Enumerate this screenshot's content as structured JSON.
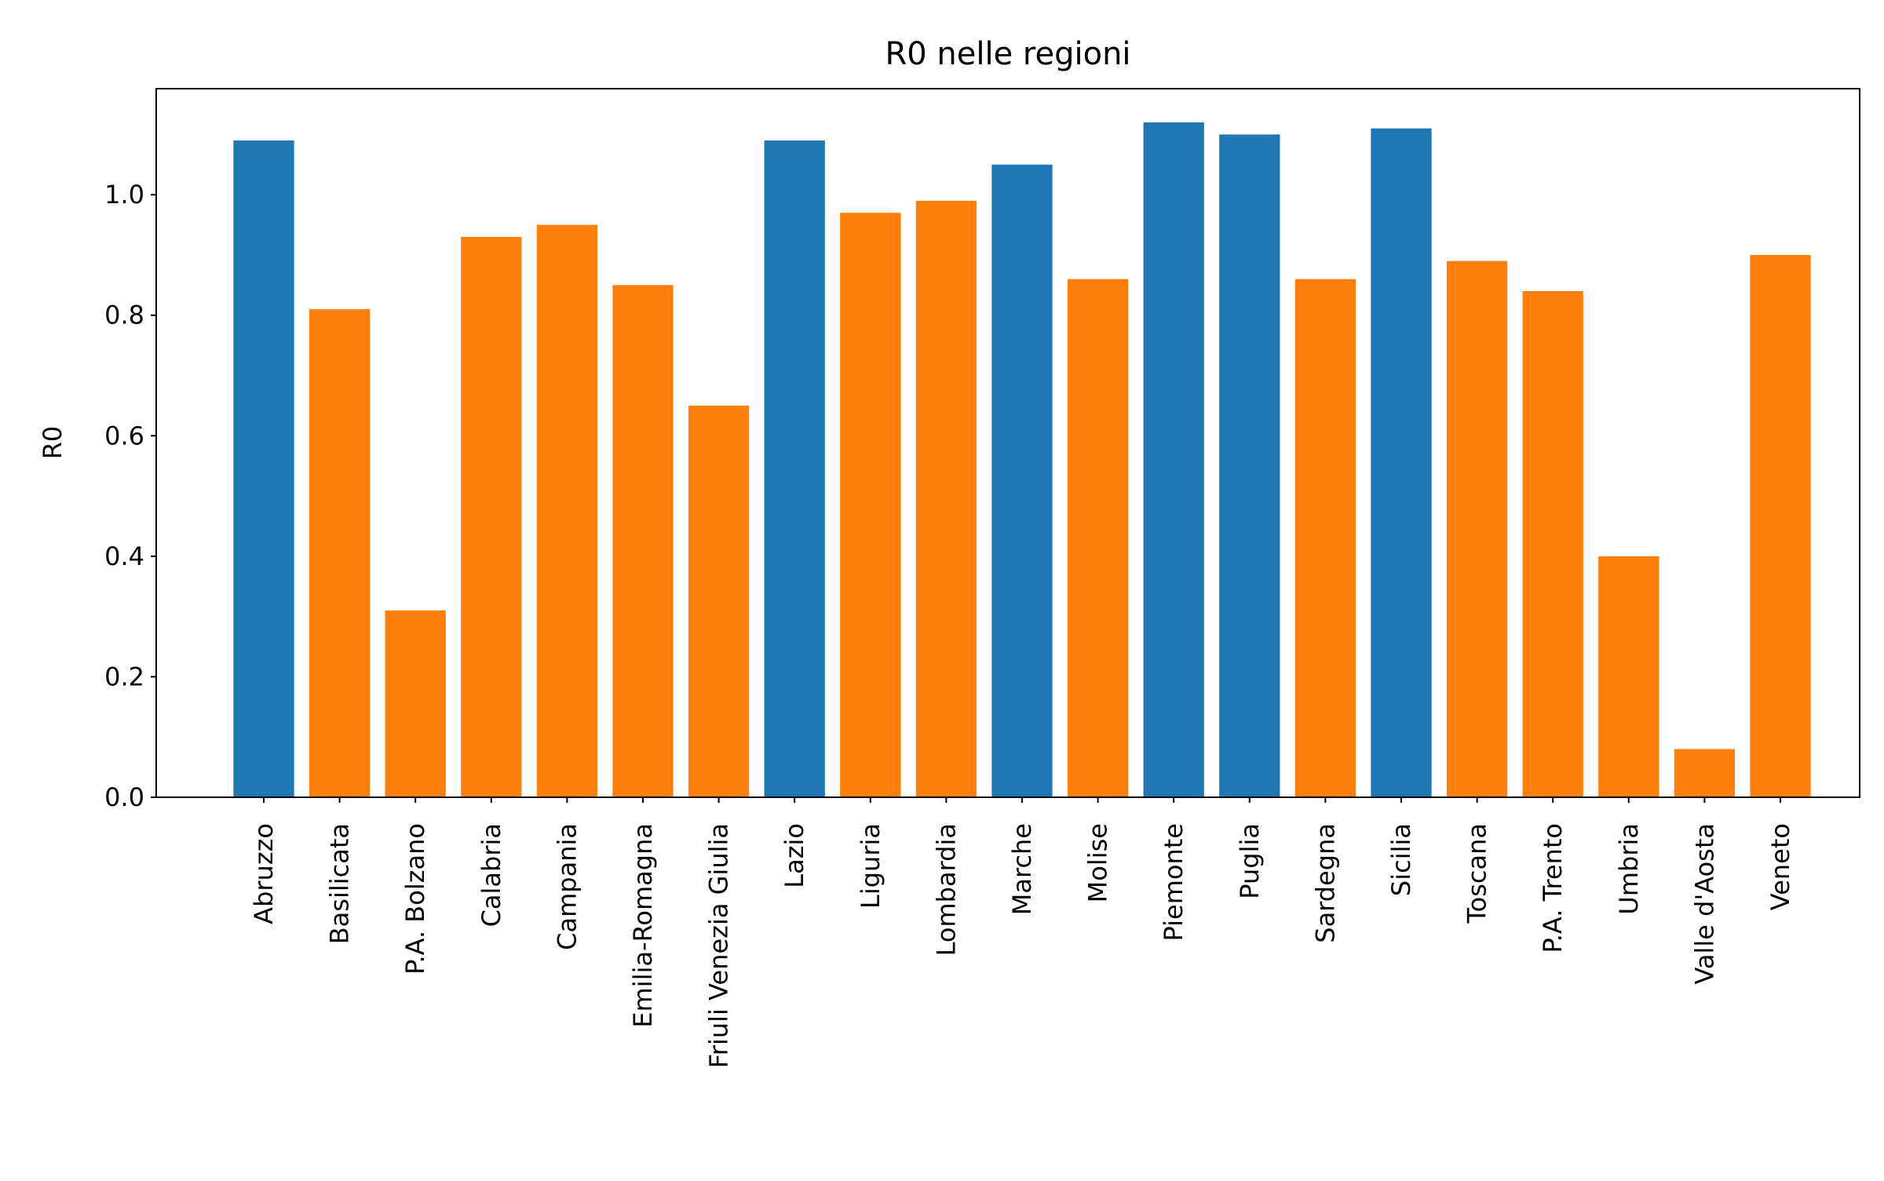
{
  "chart_data": {
    "type": "bar",
    "title": "R0 nelle regioni",
    "xlabel": "",
    "ylabel": "R0",
    "ylim": [
      0,
      1.176
    ],
    "yticks": [
      0.0,
      0.2,
      0.4,
      0.6,
      0.8,
      1.0
    ],
    "ytick_labels": [
      "0.0",
      "0.2",
      "0.4",
      "0.6",
      "0.8",
      "1.0"
    ],
    "grid": false,
    "legend": "none",
    "categories": [
      "Abruzzo",
      "Basilicata",
      "P.A. Bolzano",
      "Calabria",
      "Campania",
      "Emilia-Romagna",
      "Friuli Venezia Giulia",
      "Lazio",
      "Liguria",
      "Lombardia",
      "Marche",
      "Molise",
      "Piemonte",
      "Puglia",
      "Sardegna",
      "Sicilia",
      "Toscana",
      "P.A. Trento",
      "Umbria",
      "Valle d'Aosta",
      "Veneto"
    ],
    "values": [
      1.09,
      0.81,
      0.31,
      0.93,
      0.95,
      0.85,
      0.65,
      1.09,
      0.97,
      0.99,
      1.05,
      0.86,
      1.12,
      1.1,
      0.86,
      1.11,
      0.89,
      0.84,
      0.4,
      0.08,
      0.9
    ],
    "colors": {
      "above_one": "#1f77b4",
      "below_one": "#ff7f0e",
      "axis": "#000000"
    }
  }
}
